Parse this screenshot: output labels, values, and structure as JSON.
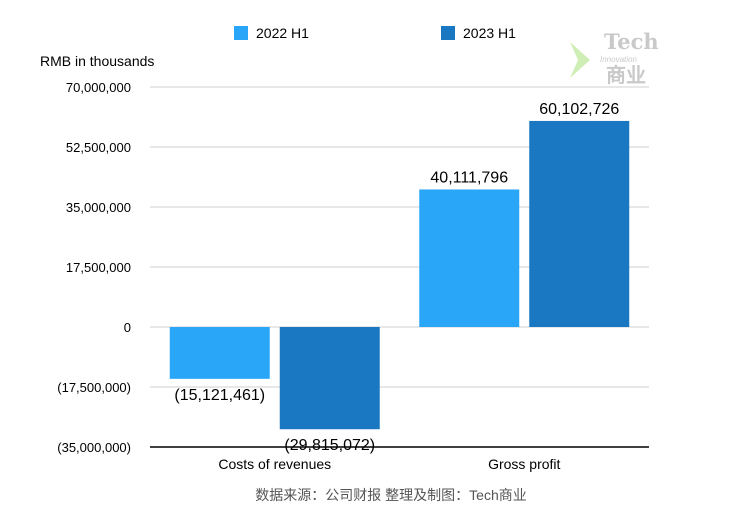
{
  "chart_data": {
    "type": "bar",
    "ylabel": "RMB in thousands",
    "categories": [
      "Costs of revenues",
      "Gross profit"
    ],
    "series": [
      {
        "name": "2022 H1",
        "color": "#2aa6f9",
        "values": [
          -15121461,
          40111796
        ]
      },
      {
        "name": "2023 H1",
        "color": "#1a78c2",
        "values": [
          -29815072,
          60102726
        ]
      }
    ],
    "data_labels": [
      [
        "(15,121,461)",
        "40,111,796"
      ],
      [
        "(29,815,072)",
        "60,102,726"
      ]
    ],
    "ylim": [
      -35000000,
      70000000
    ],
    "yticks": [
      70000000,
      52500000,
      35000000,
      17500000,
      0,
      -17500000,
      -35000000
    ],
    "ytick_labels": [
      "70,000,000",
      "52,500,000",
      "35,000,000",
      "17,500,000",
      "0",
      "(17,500,000)",
      "(35,000,000)"
    ],
    "grid": true,
    "legend_position": "top"
  },
  "source": "数据来源：公司财报 整理及制图：Tech商业",
  "watermark": {
    "line1": "Tech",
    "line2": "Innovation",
    "line3": "商业",
    "color": "#c9c9c9",
    "accent": "#a8e07a"
  }
}
